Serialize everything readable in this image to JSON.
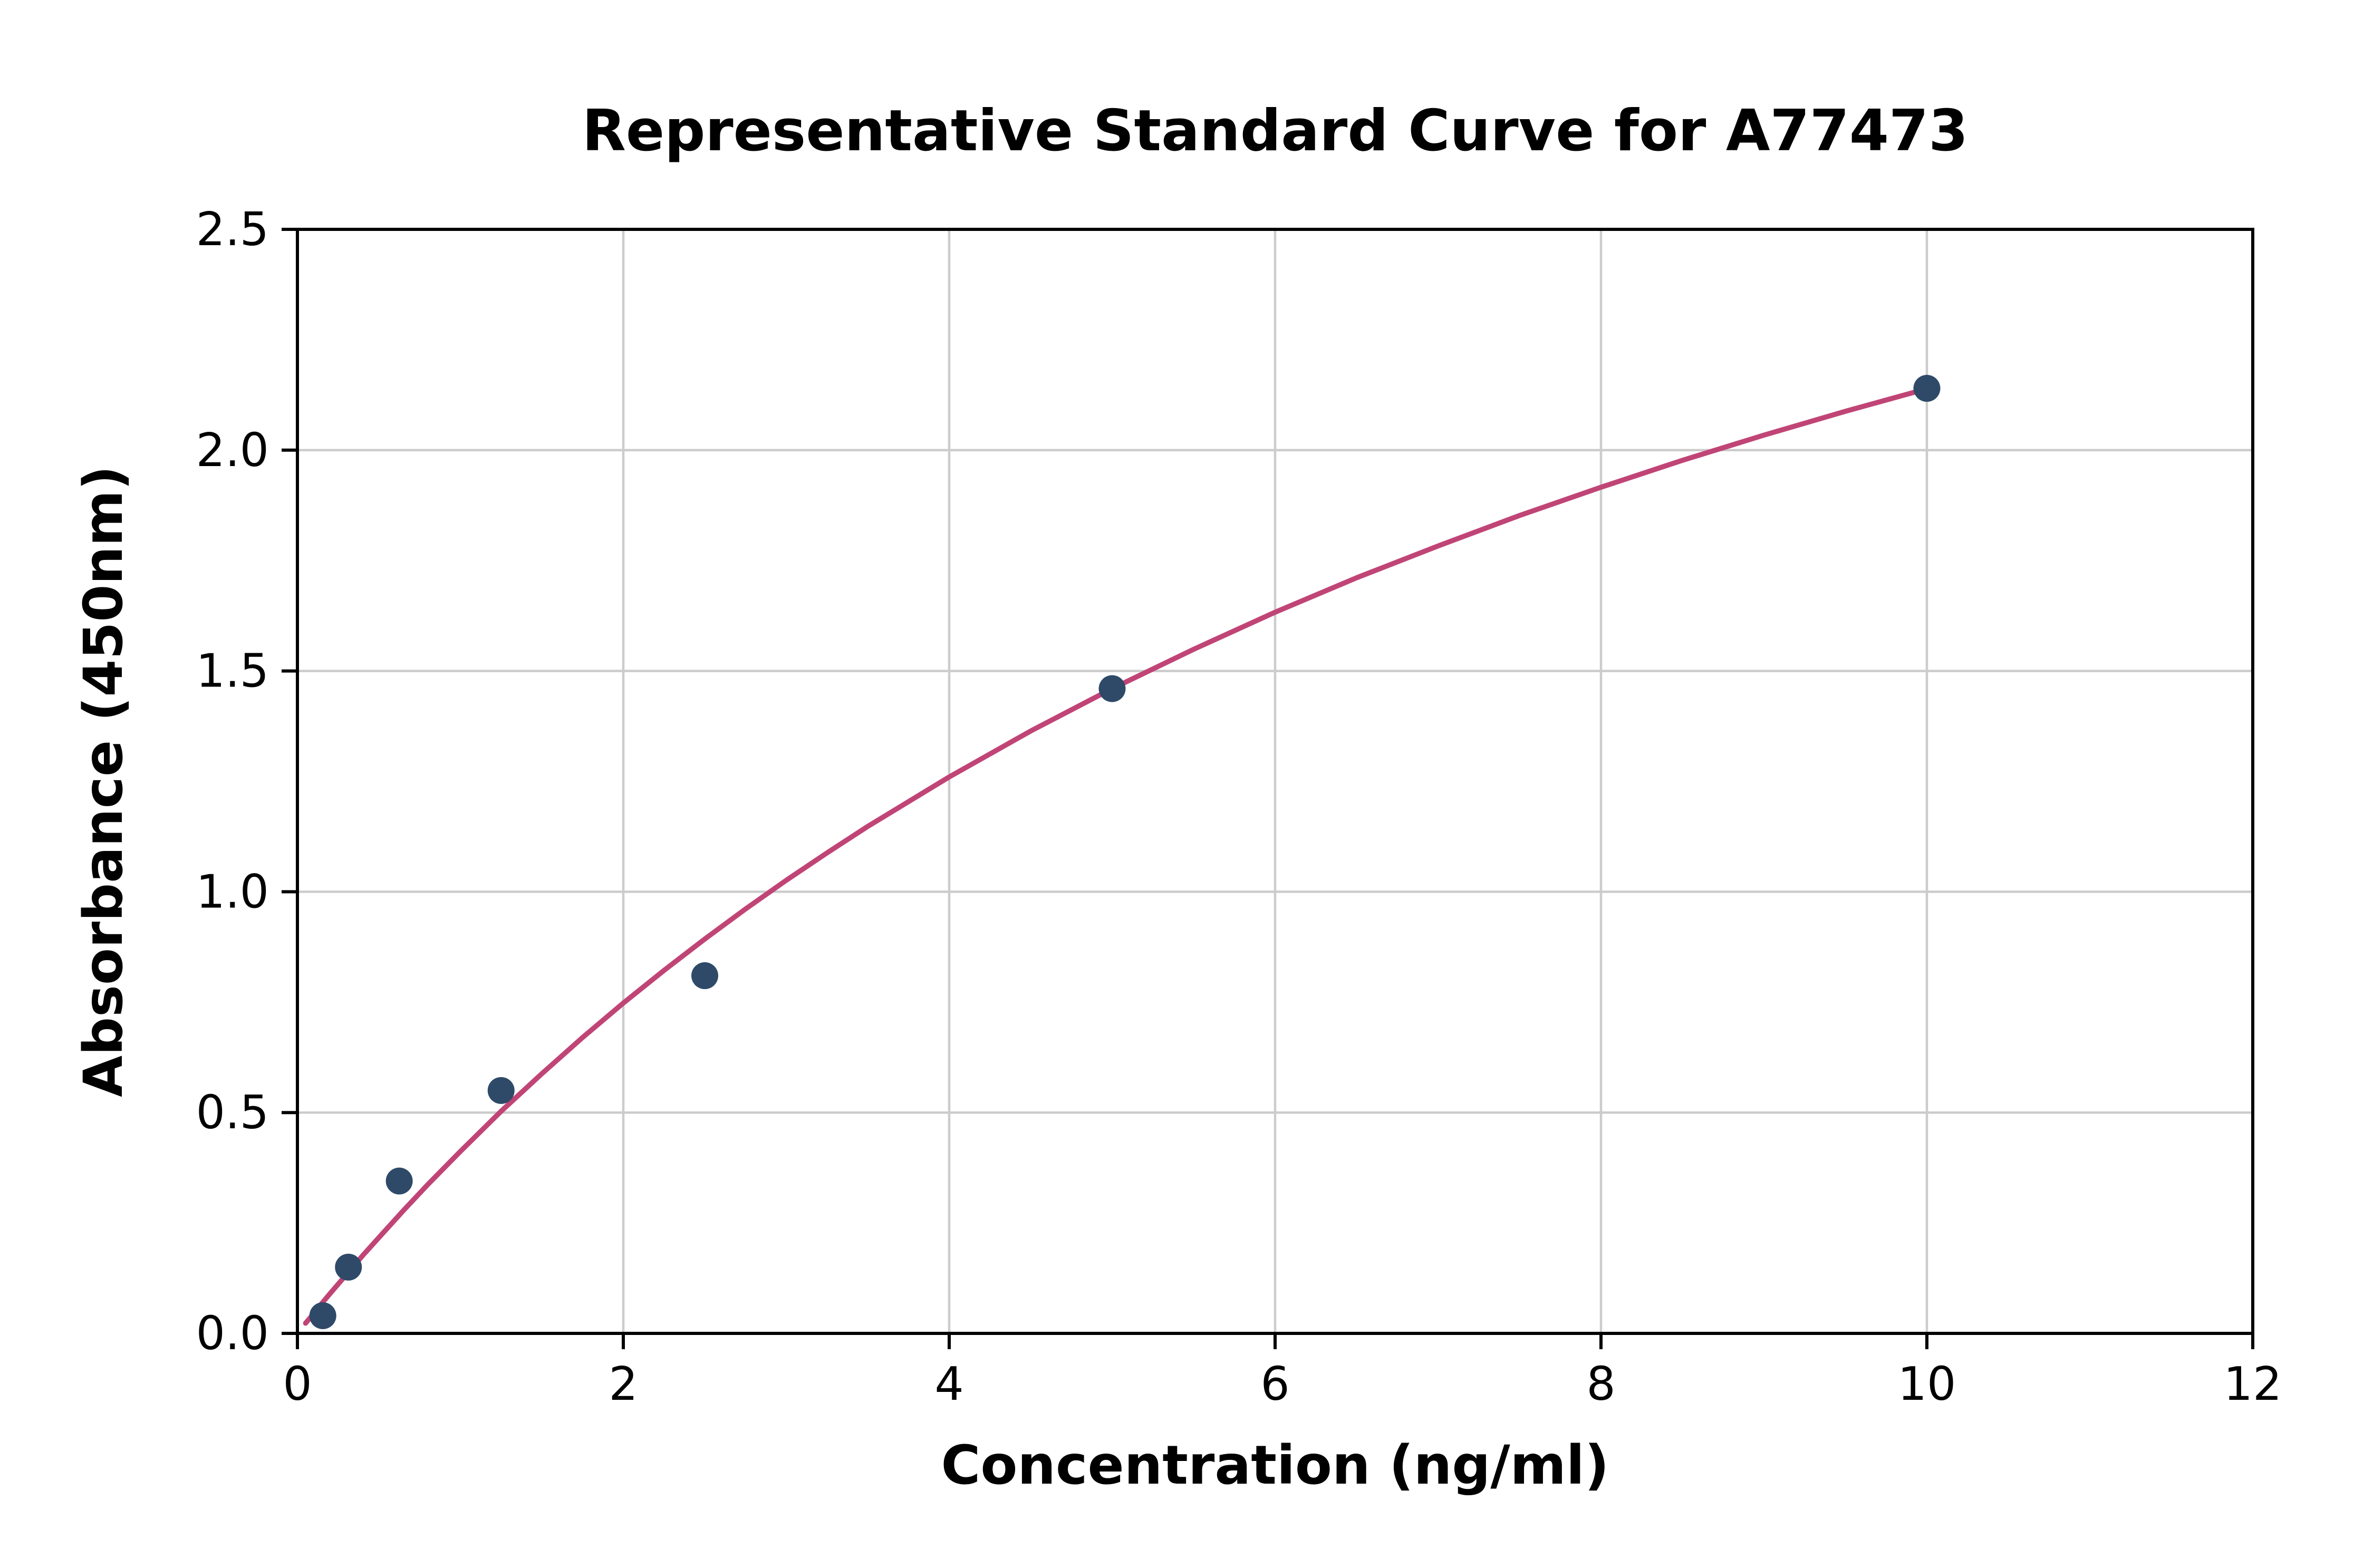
{
  "chart_data": {
    "type": "scatter",
    "title": "Representative Standard Curve for A77473",
    "xlabel": "Concentration (ng/ml)",
    "ylabel": "Absorbance (450nm)",
    "xlim": [
      0,
      12
    ],
    "ylim": [
      0,
      2.5
    ],
    "x_ticks": [
      0,
      2,
      4,
      6,
      8,
      10,
      12
    ],
    "x_tick_labels": [
      "0",
      "2",
      "4",
      "6",
      "8",
      "10",
      "12"
    ],
    "y_ticks": [
      0,
      0.5,
      1.0,
      1.5,
      2.0,
      2.5
    ],
    "y_tick_labels": [
      "0.0",
      "0.5",
      "1.0",
      "1.5",
      "2.0",
      "2.5"
    ],
    "grid": true,
    "legend": "none",
    "points": {
      "x": [
        0.156,
        0.313,
        0.625,
        1.25,
        2.5,
        5.0,
        10.0
      ],
      "y": [
        0.04,
        0.15,
        0.345,
        0.55,
        0.81,
        1.46,
        2.14
      ]
    },
    "fit_curve": {
      "x": [
        0.05,
        0.1,
        0.15,
        0.2,
        0.3,
        0.4,
        0.5,
        0.65,
        0.8,
        1.0,
        1.25,
        1.5,
        1.75,
        2.0,
        2.25,
        2.5,
        2.75,
        3.0,
        3.25,
        3.5,
        4.0,
        4.5,
        5.0,
        5.5,
        6.0,
        6.5,
        7.0,
        7.5,
        8.0,
        8.5,
        9.0,
        9.5,
        10.0
      ],
      "y": [
        0.023,
        0.045,
        0.068,
        0.09,
        0.133,
        0.176,
        0.217,
        0.278,
        0.337,
        0.412,
        0.503,
        0.588,
        0.67,
        0.748,
        0.822,
        0.893,
        0.961,
        1.026,
        1.088,
        1.148,
        1.26,
        1.364,
        1.46,
        1.549,
        1.633,
        1.711,
        1.783,
        1.852,
        1.916,
        1.977,
        2.034,
        2.088,
        2.139
      ]
    },
    "colors": {
      "marker": "#2e4a68",
      "curve": "#c04576",
      "grid": "#cccccc",
      "axis": "#000000",
      "background": "#ffffff"
    },
    "marker_radius": 8.5
  }
}
